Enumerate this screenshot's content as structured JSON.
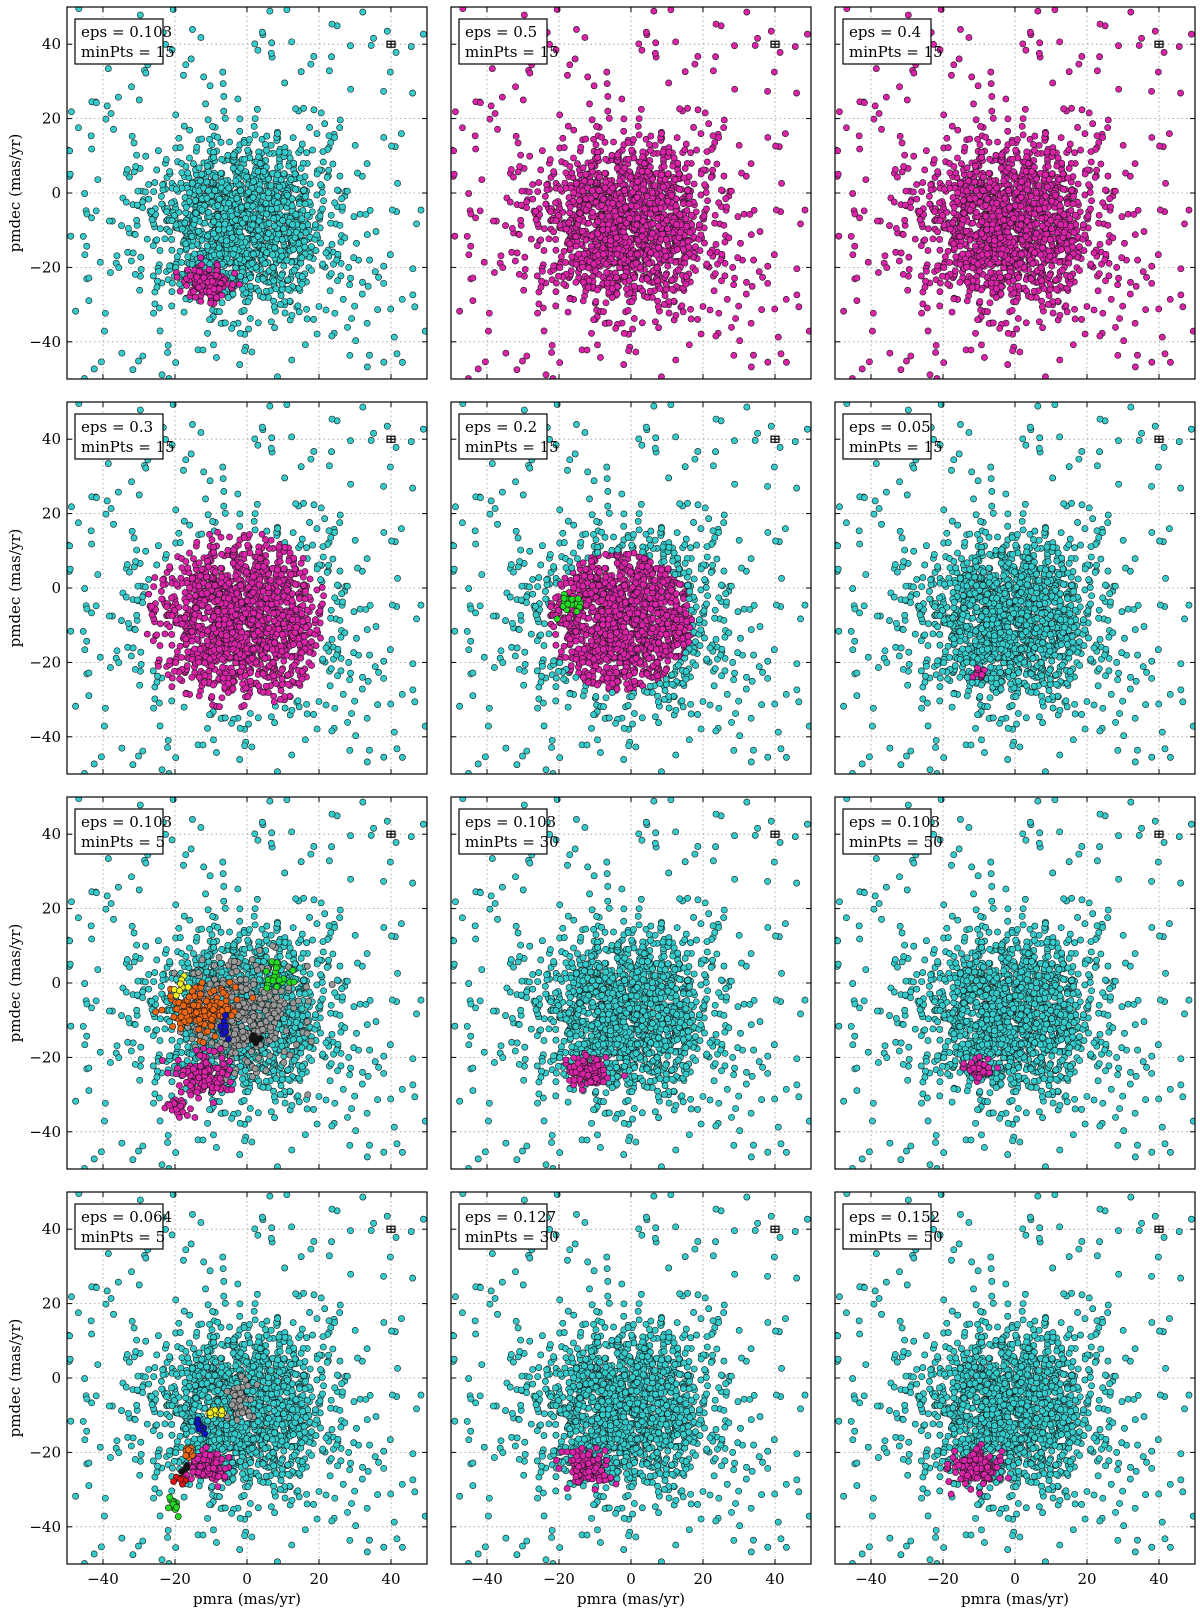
{
  "chart_data": {
    "type": "scatter",
    "xlabel": "pmra (mas/yr)",
    "ylabel": "pmdec (mas/yr)",
    "xlim": [
      -50,
      50
    ],
    "ylim": [
      -50,
      50
    ],
    "xticks": [
      -40,
      -20,
      0,
      20,
      40
    ],
    "yticks": [
      -40,
      -20,
      0,
      20,
      40
    ],
    "grid": true,
    "error_bar_marker": {
      "x": 40,
      "y": 40
    },
    "colors": {
      "field": "#33cccc",
      "cluster": "#dd22aa",
      "green": "#22dd22",
      "orange": "#ee6611",
      "gray": "#999999",
      "yellow": "#eeee22",
      "blue": "#1111cc",
      "black": "#111111",
      "red": "#dd1111"
    },
    "panels": [
      {
        "eps_text": "eps = 0.103",
        "minpts_text": "minPts = 15",
        "clusters": [
          {
            "color": "cluster",
            "cx": -11,
            "cy": -24,
            "sx": 3.4,
            "sy": 2.2,
            "n": 130
          }
        ]
      },
      {
        "eps_text": "eps = 0.5",
        "minpts_text": "minPts = 15",
        "majority": "cluster",
        "clusters": []
      },
      {
        "eps_text": "eps = 0.4",
        "minpts_text": "minPts = 15",
        "majority": "cluster",
        "clusters": []
      },
      {
        "eps_text": "eps = 0.3",
        "minpts_text": "minPts = 15",
        "majority": "cluster",
        "core_only": true,
        "clusters": []
      },
      {
        "eps_text": "eps = 0.2",
        "minpts_text": "minPts = 15",
        "majority": "cluster",
        "core_only": true,
        "core_radius": 20,
        "clusters": [
          {
            "color": "green",
            "cx": -18,
            "cy": -4,
            "sx": 2.5,
            "sy": 1.8,
            "n": 22
          }
        ]
      },
      {
        "eps_text": "eps = 0.05",
        "minpts_text": "minPts = 15",
        "clusters": [
          {
            "color": "cluster",
            "cx": -10,
            "cy": -23,
            "sx": 1.2,
            "sy": 1.0,
            "n": 14
          }
        ]
      },
      {
        "eps_text": "eps = 0.103",
        "minpts_text": "minPts = 5",
        "clusters": [
          {
            "color": "gray",
            "cx": -2,
            "cy": -8,
            "sx": 7.5,
            "sy": 7,
            "n": 320
          },
          {
            "color": "orange",
            "cx": -12,
            "cy": -7,
            "sx": 4.5,
            "sy": 3,
            "n": 150
          },
          {
            "color": "cluster",
            "cx": -12,
            "cy": -25,
            "sx": 4,
            "sy": 3,
            "n": 120
          },
          {
            "color": "cluster",
            "cx": -19,
            "cy": -34,
            "sx": 2,
            "sy": 1.5,
            "n": 20
          },
          {
            "color": "green",
            "cx": 8,
            "cy": 2,
            "sx": 2,
            "sy": 1.8,
            "n": 22
          },
          {
            "color": "yellow",
            "cx": -18,
            "cy": -1,
            "sx": 1.2,
            "sy": 0.9,
            "n": 10
          },
          {
            "color": "blue",
            "cx": -6,
            "cy": -12,
            "sx": 0.8,
            "sy": 1.5,
            "n": 10
          },
          {
            "color": "black",
            "cx": 2,
            "cy": -15,
            "sx": 0.8,
            "sy": 0.8,
            "n": 6
          }
        ]
      },
      {
        "eps_text": "eps = 0.103",
        "minpts_text": "minPts = 30",
        "clusters": [
          {
            "color": "cluster",
            "cx": -12,
            "cy": -24,
            "sx": 2.8,
            "sy": 2,
            "n": 110
          }
        ]
      },
      {
        "eps_text": "eps = 0.103",
        "minpts_text": "minPts = 50",
        "clusters": [
          {
            "color": "cluster",
            "cx": -10,
            "cy": -23,
            "sx": 1.8,
            "sy": 1.4,
            "n": 45
          }
        ]
      },
      {
        "eps_text": "eps = 0.064",
        "minpts_text": "minPts = 5",
        "clusters": [
          {
            "color": "cluster",
            "cx": -11,
            "cy": -24,
            "sx": 2.6,
            "sy": 2,
            "n": 110
          },
          {
            "color": "gray",
            "cx": -2,
            "cy": -6,
            "sx": 2,
            "sy": 3.5,
            "n": 40
          },
          {
            "color": "yellow",
            "cx": -8,
            "cy": -9,
            "sx": 1.1,
            "sy": 0.9,
            "n": 14
          },
          {
            "color": "blue",
            "cx": -13,
            "cy": -13,
            "sx": 0.7,
            "sy": 1.2,
            "n": 10
          },
          {
            "color": "orange",
            "cx": -16,
            "cy": -20,
            "sx": 0.8,
            "sy": 1.0,
            "n": 8
          },
          {
            "color": "black",
            "cx": -17,
            "cy": -24,
            "sx": 0.6,
            "sy": 0.6,
            "n": 4
          },
          {
            "color": "red",
            "cx": -19,
            "cy": -27,
            "sx": 1,
            "sy": 0.8,
            "n": 9
          },
          {
            "color": "green",
            "cx": -21,
            "cy": -34,
            "sx": 1.4,
            "sy": 1.2,
            "n": 14
          }
        ]
      },
      {
        "eps_text": "eps = 0.127",
        "minpts_text": "minPts = 30",
        "clusters": [
          {
            "color": "cluster",
            "cx": -12,
            "cy": -24,
            "sx": 3.2,
            "sy": 2.2,
            "n": 130
          }
        ]
      },
      {
        "eps_text": "eps = 0.152",
        "minpts_text": "minPts = 50",
        "clusters": [
          {
            "color": "cluster",
            "cx": -11,
            "cy": -24,
            "sx": 3.4,
            "sy": 2.3,
            "n": 140
          }
        ]
      }
    ]
  }
}
